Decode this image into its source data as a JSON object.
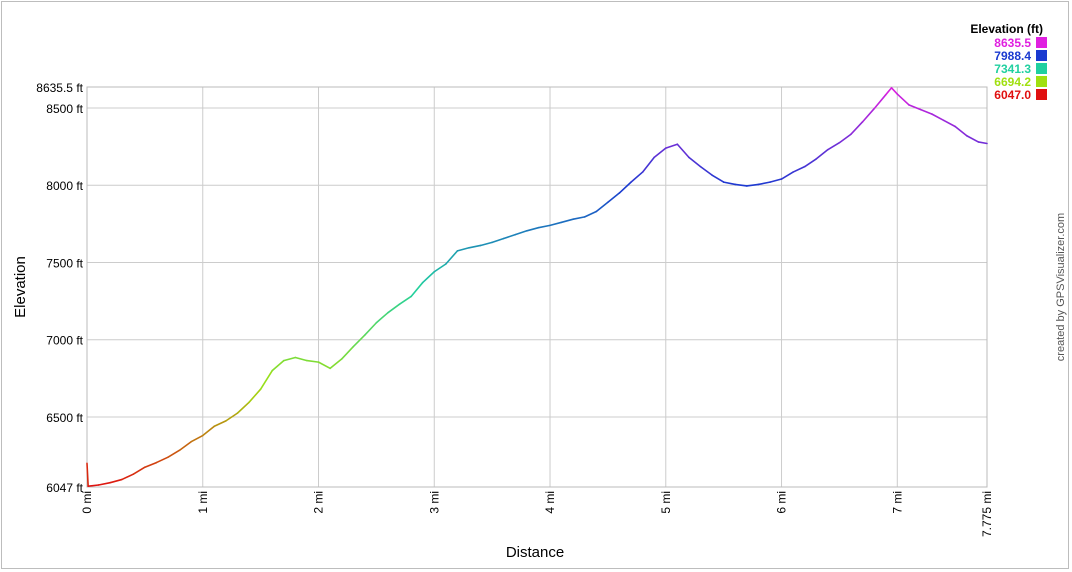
{
  "chart_data": {
    "type": "line",
    "title": "",
    "xlabel": "Distance",
    "ylabel": "Elevation",
    "x_unit": "mi",
    "y_unit": "ft",
    "xlim": [
      0,
      7.775
    ],
    "ylim": [
      6047.0,
      8635.5
    ],
    "x_ticks": [
      "0 mi",
      "1 mi",
      "2 mi",
      "3 mi",
      "4 mi",
      "5 mi",
      "6 mi",
      "7 mi",
      "7.775 mi"
    ],
    "x_tick_values": [
      0,
      1,
      2,
      3,
      4,
      5,
      6,
      7,
      7.775
    ],
    "y_ticks": [
      "6047 ft",
      "6500 ft",
      "7000 ft",
      "7500 ft",
      "8000 ft",
      "8500 ft",
      "8635.5 ft"
    ],
    "y_tick_values": [
      6047,
      6500,
      7000,
      7500,
      8000,
      8500,
      8635.5
    ],
    "grid": true,
    "legend": {
      "title": "Elevation (ft)",
      "placement": "top-right",
      "entries": [
        {
          "label": "8635.5",
          "color": "#e020e0"
        },
        {
          "label": "7988.4",
          "color": "#1a3ad0"
        },
        {
          "label": "7341.3",
          "color": "#20d0a0"
        },
        {
          "label": "6694.2",
          "color": "#a0e010"
        },
        {
          "label": "6047.0",
          "color": "#e01010"
        }
      ]
    },
    "credit": "created by GPSVisualizer.com",
    "series": [
      {
        "x": [
          0,
          0.01,
          0.1,
          0.2,
          0.3,
          0.4,
          0.5,
          0.6,
          0.7,
          0.8,
          0.9,
          1.0,
          1.1,
          1.2,
          1.3,
          1.4,
          1.5,
          1.6,
          1.7,
          1.8,
          1.9,
          2.0,
          2.1,
          2.2,
          2.3,
          2.4,
          2.5,
          2.6,
          2.7,
          2.8,
          2.9,
          3.0,
          3.1,
          3.2,
          3.3,
          3.4,
          3.5,
          3.6,
          3.7,
          3.8,
          3.9,
          4.0,
          4.1,
          4.2,
          4.3,
          4.4,
          4.5,
          4.6,
          4.7,
          4.8,
          4.9,
          5.0,
          5.1,
          5.2,
          5.3,
          5.4,
          5.5,
          5.6,
          5.7,
          5.8,
          5.9,
          6.0,
          6.1,
          6.2,
          6.3,
          6.4,
          6.5,
          6.6,
          6.7,
          6.8,
          6.9,
          6.95,
          7.0,
          7.1,
          7.2,
          7.3,
          7.4,
          7.5,
          7.6,
          7.7,
          7.775
        ],
        "y": [
          6200,
          6052,
          6060,
          6075,
          6095,
          6130,
          6175,
          6205,
          6240,
          6285,
          6340,
          6380,
          6440,
          6475,
          6525,
          6595,
          6680,
          6800,
          6865,
          6885,
          6865,
          6855,
          6815,
          6875,
          6955,
          7030,
          7110,
          7175,
          7230,
          7280,
          7370,
          7440,
          7490,
          7575,
          7595,
          7610,
          7630,
          7655,
          7680,
          7705,
          7725,
          7740,
          7760,
          7780,
          7795,
          7830,
          7890,
          7950,
          8020,
          8085,
          8180,
          8240,
          8265,
          8180,
          8120,
          8065,
          8020,
          8005,
          7995,
          8005,
          8020,
          8040,
          8085,
          8120,
          8170,
          8230,
          8275,
          8330,
          8410,
          8495,
          8585,
          8630,
          8590,
          8520,
          8490,
          8460,
          8420,
          8380,
          8320,
          8280,
          8270
        ]
      }
    ]
  }
}
